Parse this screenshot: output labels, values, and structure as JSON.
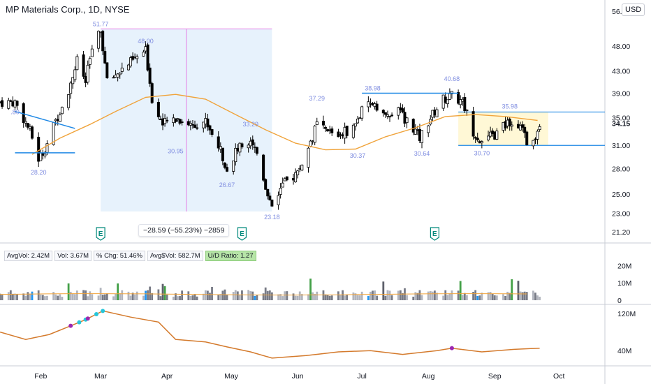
{
  "header": {
    "title": "MP Materials Corp., 1D, NYSE",
    "currency": "USD"
  },
  "indicators": {
    "avg_vol": "AvgVol: 2.42M",
    "vol": "Vol: 3.67M",
    "pct_chg": "% Chg: 51.46%",
    "avg_dollar_vol": "Avg$Vol: 582.7M",
    "ud_ratio": "U/D Ratio: 1.27"
  },
  "measure_label": "−28.59 (−55.23%) −2859",
  "earnings_marker": "E",
  "chart_data": {
    "type": "candlestick",
    "title": "MP Materials Corp., 1D, NYSE",
    "y_axis": {
      "scale": "log",
      "ticks": [
        56.0,
        48.0,
        43.0,
        39.0,
        35.0,
        31.0,
        28.0,
        25.0,
        23.0,
        21.2
      ],
      "range": [
        20.3,
        57
      ]
    },
    "current_price": "34.15",
    "x_axis": {
      "ticks": [
        "Feb",
        "Mar",
        "Apr",
        "May",
        "Jun",
        "Jul",
        "Aug",
        "Sep",
        "Oct"
      ]
    },
    "price_path": [
      [
        "2022-01-20",
        37.5
      ],
      [
        "2022-01-27",
        33.0
      ],
      [
        "2022-01-31",
        29.2
      ],
      [
        "2022-02-03",
        30.5
      ],
      [
        "2022-02-08",
        34.5
      ],
      [
        "2022-02-14",
        39.5
      ],
      [
        "2022-02-18",
        45.0
      ],
      [
        "2022-02-22",
        41.0
      ],
      [
        "2022-02-25",
        47.5
      ],
      [
        "2022-03-01",
        51.0
      ],
      [
        "2022-03-04",
        41.0
      ],
      [
        "2022-03-10",
        43.0
      ],
      [
        "2022-03-16",
        45.0
      ],
      [
        "2022-03-22",
        47.0
      ],
      [
        "2022-03-25",
        38.0
      ],
      [
        "2022-03-30",
        34.0
      ],
      [
        "2022-04-05",
        35.0
      ],
      [
        "2022-04-12",
        34.0
      ],
      [
        "2022-04-19",
        34.5
      ],
      [
        "2022-04-25",
        31.0
      ],
      [
        "2022-04-29",
        28.0
      ],
      [
        "2022-05-04",
        30.5
      ],
      [
        "2022-05-10",
        32.0
      ],
      [
        "2022-05-13",
        30.0
      ],
      [
        "2022-05-18",
        25.0
      ],
      [
        "2022-05-20",
        24.0
      ],
      [
        "2022-05-25",
        26.0
      ],
      [
        "2022-06-01",
        27.5
      ],
      [
        "2022-06-06",
        30.5
      ],
      [
        "2022-06-10",
        34.0
      ],
      [
        "2022-06-14",
        33.0
      ],
      [
        "2022-06-20",
        32.5
      ],
      [
        "2022-06-27",
        33.5
      ],
      [
        "2022-07-01",
        36.0
      ],
      [
        "2022-07-07",
        37.5
      ],
      [
        "2022-07-12",
        35.0
      ],
      [
        "2022-07-18",
        36.0
      ],
      [
        "2022-07-25",
        33.5
      ],
      [
        "2022-07-28",
        32.0
      ],
      [
        "2022-08-02",
        35.0
      ],
      [
        "2022-08-08",
        38.0
      ],
      [
        "2022-08-12",
        38.5
      ],
      [
        "2022-08-17",
        37.5
      ],
      [
        "2022-08-22",
        33.0
      ],
      [
        "2022-08-26",
        31.5
      ],
      [
        "2022-09-01",
        32.5
      ],
      [
        "2022-09-08",
        34.5
      ],
      [
        "2022-09-13",
        33.5
      ],
      [
        "2022-09-16",
        31.5
      ],
      [
        "2022-09-20",
        32.5
      ],
      [
        "2022-09-22",
        34.2
      ]
    ],
    "price_labels": [
      {
        "date": "2022-01-20",
        "price": 36.8,
        "text": ".80"
      },
      {
        "date": "2022-01-31",
        "price": 28.2,
        "text": "28.20"
      },
      {
        "date": "2022-03-01",
        "price": 51.77,
        "text": "51.77"
      },
      {
        "date": "2022-03-22",
        "price": 48.0,
        "text": "48.00"
      },
      {
        "date": "2022-04-05",
        "price": 30.95,
        "text": "30.95"
      },
      {
        "date": "2022-04-29",
        "price": 26.67,
        "text": "26.67"
      },
      {
        "date": "2022-05-10",
        "price": 33.29,
        "text": "33.29"
      },
      {
        "date": "2022-05-20",
        "price": 23.18,
        "text": "23.18"
      },
      {
        "date": "2022-06-10",
        "price": 37.29,
        "text": "37.29"
      },
      {
        "date": "2022-06-29",
        "price": 30.37,
        "text": "30.37"
      },
      {
        "date": "2022-07-06",
        "price": 38.98,
        "text": "38.98"
      },
      {
        "date": "2022-07-29",
        "price": 30.64,
        "text": "30.64"
      },
      {
        "date": "2022-08-12",
        "price": 40.68,
        "text": "40.68"
      },
      {
        "date": "2022-08-26",
        "price": 30.7,
        "text": "30.70"
      },
      {
        "date": "2022-09-08",
        "price": 35.98,
        "text": "35.98"
      }
    ],
    "lines": [
      {
        "kind": "trendline",
        "from": [
          "2022-01-20",
          36.0
        ],
        "to": [
          "2022-02-17",
          33.4
        ]
      },
      {
        "kind": "support",
        "from": [
          "2022-01-20",
          30.0
        ],
        "to": [
          "2022-02-17",
          30.0
        ]
      },
      {
        "kind": "resistance",
        "from": [
          "2022-07-01",
          39.0
        ],
        "to": [
          "2022-08-15",
          39.0
        ]
      }
    ],
    "range_box": {
      "from": "2022-08-15",
      "to": "2022-09-26",
      "top": 35.9,
      "bottom": 31.0
    },
    "measure_box": {
      "from": "2022-03-01",
      "to": "2022-05-20",
      "high": 51.77,
      "low": 23.18,
      "change": "−28.59 (−55.23%) −2859"
    },
    "earnings_dates": [
      "2022-03-01",
      "2022-05-06",
      "2022-08-04"
    ],
    "moving_average": [
      [
        "2022-01-28",
        29.8
      ],
      [
        "2022-02-10",
        32.0
      ],
      [
        "2022-02-24",
        34.0
      ],
      [
        "2022-03-08",
        36.0
      ],
      [
        "2022-03-22",
        38.3
      ],
      [
        "2022-04-05",
        38.8
      ],
      [
        "2022-04-19",
        38.0
      ],
      [
        "2022-05-03",
        35.5
      ],
      [
        "2022-05-17",
        33.2
      ],
      [
        "2022-05-31",
        31.3
      ],
      [
        "2022-06-14",
        30.4
      ],
      [
        "2022-06-28",
        30.5
      ],
      [
        "2022-07-12",
        32.2
      ],
      [
        "2022-07-26",
        33.5
      ],
      [
        "2022-08-09",
        35.2
      ],
      [
        "2022-08-23",
        35.5
      ],
      [
        "2022-09-06",
        35.2
      ],
      [
        "2022-09-21",
        34.6
      ]
    ],
    "volume": {
      "ticks": [
        "20M",
        "10M",
        "0"
      ],
      "range": [
        0,
        25
      ],
      "unit": "M",
      "average_line": "orange"
    },
    "relative_strength": {
      "ticks": [
        "120M",
        "40M"
      ],
      "markers": [
        {
          "date": "2022-02-15",
          "color": "#9c27b0"
        },
        {
          "date": "2022-02-19",
          "color": "#26c6da"
        },
        {
          "date": "2022-02-22",
          "color": "#26c6da"
        },
        {
          "date": "2022-02-23",
          "color": "#9c27b0"
        },
        {
          "date": "2022-02-27",
          "color": "#26c6da"
        },
        {
          "date": "2022-03-02",
          "color": "#26c6da"
        },
        {
          "date": "2022-08-12",
          "color": "#9c27b0"
        }
      ]
    },
    "colors": {
      "up": "#ffffff",
      "down": "#000000",
      "ma": "#f0a33a",
      "drawn_line": "#1e88e5",
      "range_fill": "#fff8d6",
      "measure_fill": "#e3f0fc",
      "rs": "#d47a2c",
      "volume_up": "#43a047",
      "volume_down": "#787b86",
      "volume_high": "#2196f3",
      "label": "#7e8ce0"
    }
  }
}
